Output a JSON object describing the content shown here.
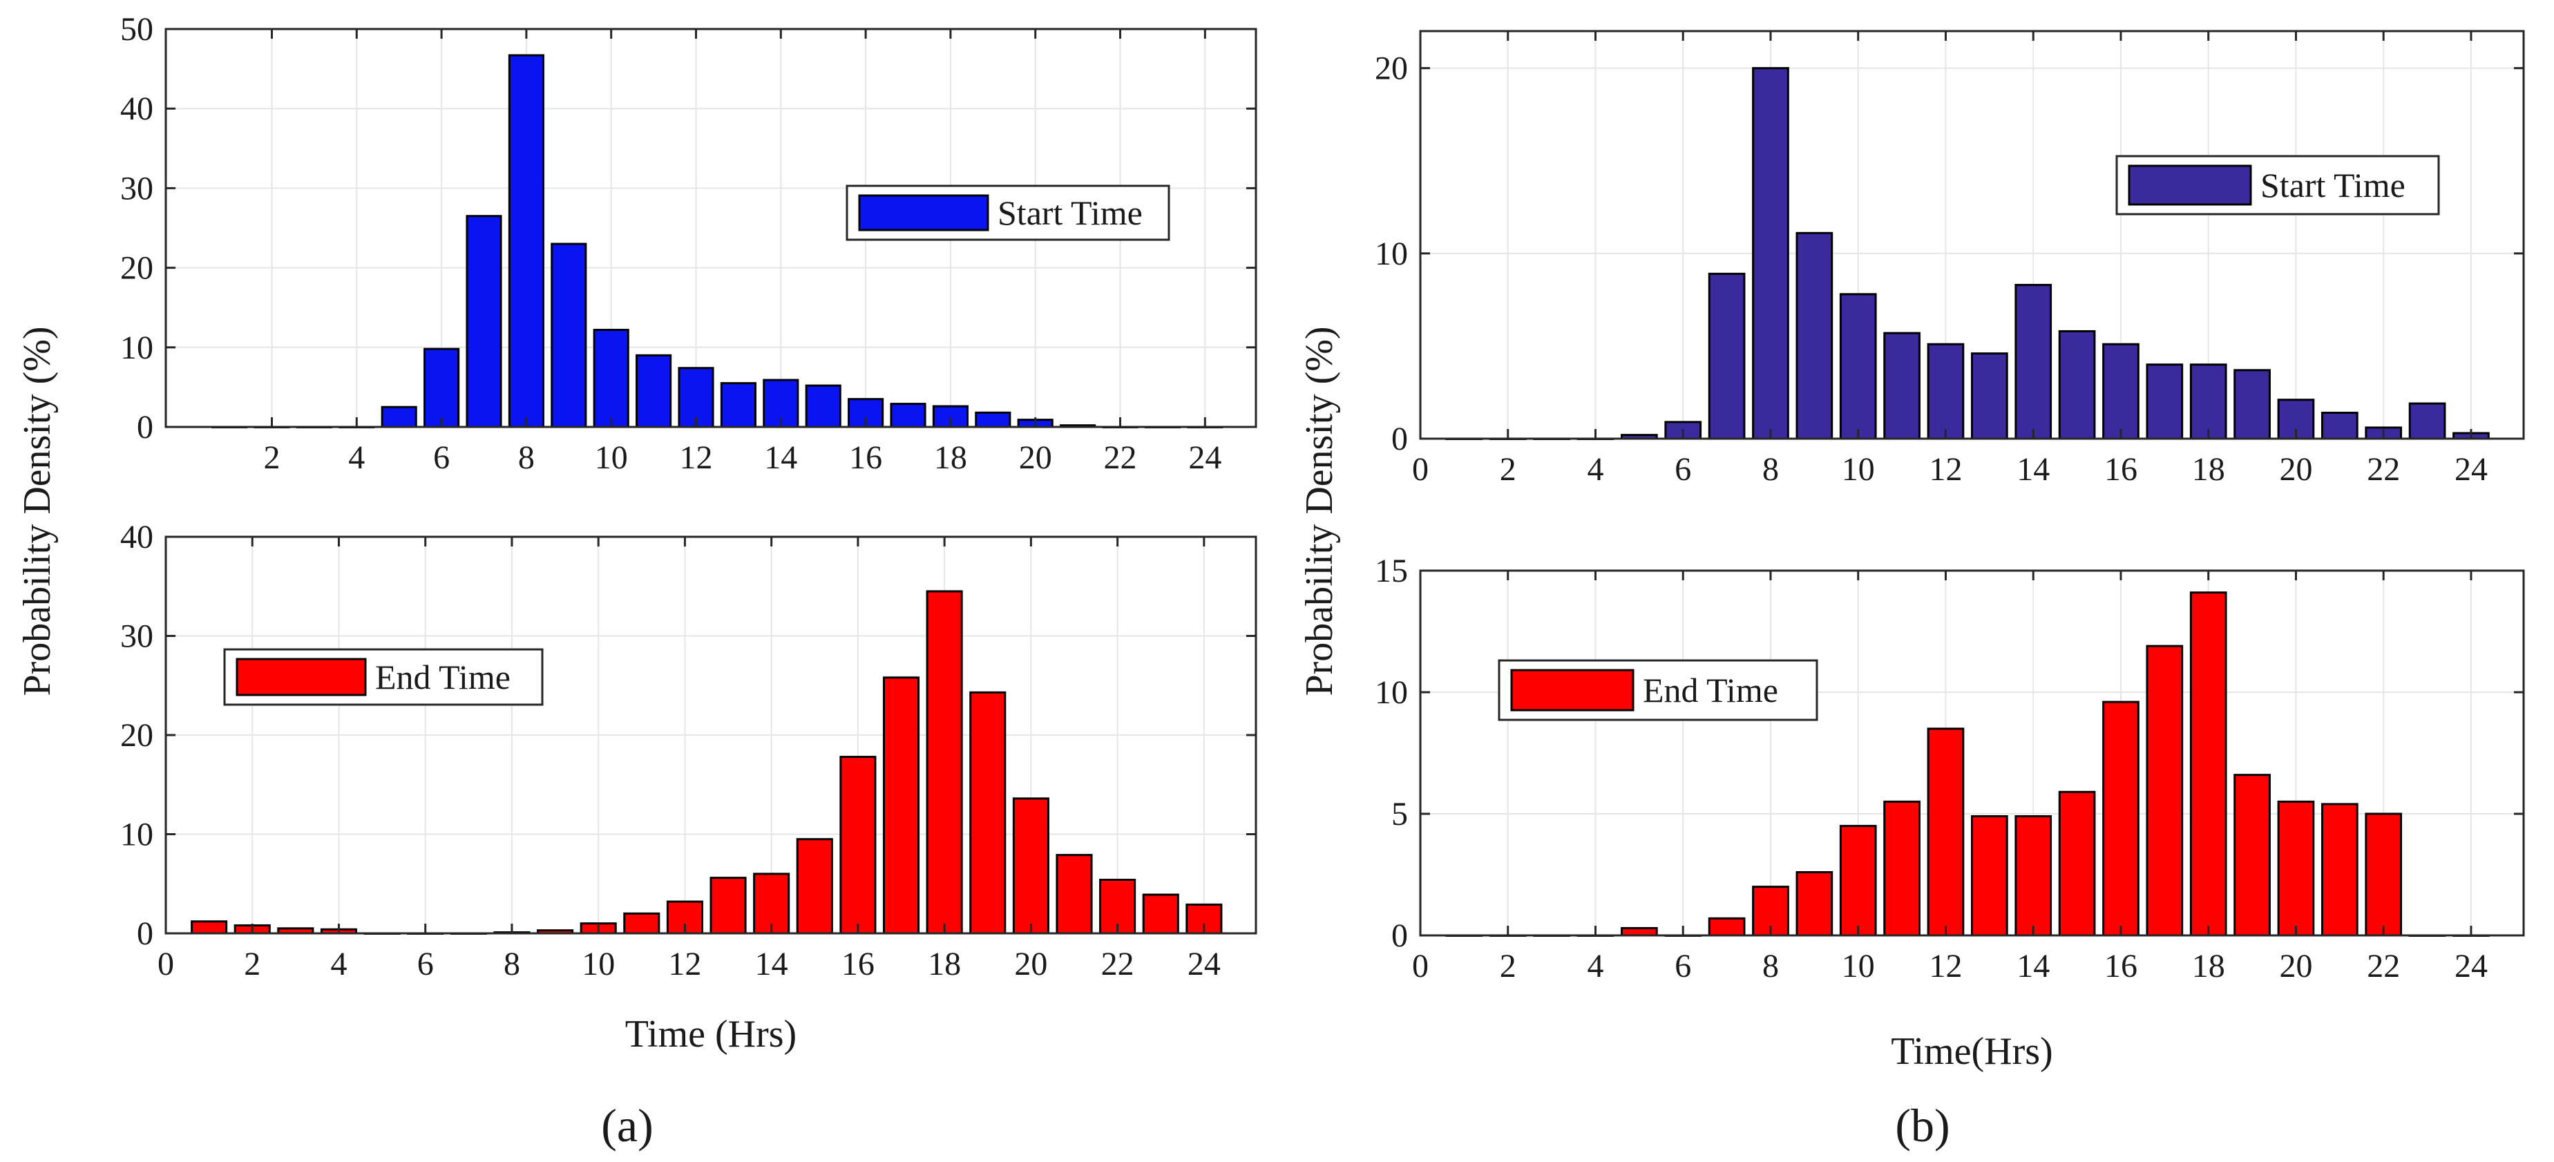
{
  "panel_labels": [
    "(a)",
    "(b)"
  ],
  "shared_ylabels": [
    "Probability Density (%)",
    "Probability Density (%)"
  ],
  "colors": {
    "a_start": "#0a14f0",
    "a_end": "#ff0000",
    "b_start": "#3a2a9e",
    "b_end": "#ff0000"
  },
  "chart_data": [
    {
      "id": "a_top",
      "type": "bar",
      "series": [
        {
          "name": "Start Time",
          "values": [
            0,
            0,
            0,
            0,
            2.5,
            9.8,
            26.5,
            46.7,
            23.0,
            12.2,
            9.0,
            7.4,
            5.5,
            5.9,
            5.2,
            3.5,
            2.9,
            2.6,
            1.8,
            0.9,
            0.2,
            0,
            0,
            0
          ]
        }
      ],
      "x": [
        1,
        2,
        3,
        4,
        5,
        6,
        7,
        8,
        9,
        10,
        11,
        12,
        13,
        14,
        15,
        16,
        17,
        18,
        19,
        20,
        21,
        22,
        23,
        24
      ],
      "xticks": [
        2,
        4,
        6,
        8,
        10,
        12,
        14,
        16,
        18,
        20,
        22,
        24
      ],
      "yticks": [
        0,
        10,
        20,
        30,
        40,
        50
      ],
      "xlim": [
        -0.5,
        25.2
      ],
      "ylim": [
        0,
        50
      ],
      "xlabel": "",
      "grid": true,
      "legend": "right"
    },
    {
      "id": "a_bottom",
      "type": "bar",
      "series": [
        {
          "name": "End Time",
          "values": [
            1.2,
            0.8,
            0.5,
            0.4,
            0,
            0,
            0,
            0.1,
            0.3,
            1.0,
            2.0,
            3.2,
            5.6,
            6.0,
            9.5,
            17.8,
            25.8,
            34.5,
            24.3,
            13.6,
            7.9,
            5.4,
            3.9,
            2.9
          ]
        }
      ],
      "x": [
        1,
        2,
        3,
        4,
        5,
        6,
        7,
        8,
        9,
        10,
        11,
        12,
        13,
        14,
        15,
        16,
        17,
        18,
        19,
        20,
        21,
        22,
        23,
        24
      ],
      "xticks": [
        0,
        2,
        4,
        6,
        8,
        10,
        12,
        14,
        16,
        18,
        20,
        22,
        24
      ],
      "yticks": [
        0,
        10,
        20,
        30,
        40
      ],
      "xlim": [
        0,
        25.2
      ],
      "ylim": [
        0,
        40
      ],
      "xlabel": "Time (Hrs)",
      "grid": true,
      "legend": "left"
    },
    {
      "id": "b_top",
      "type": "bar",
      "series": [
        {
          "name": "Start Time",
          "values": [
            0,
            0,
            0,
            0,
            0.2,
            0.9,
            8.9,
            20.0,
            11.1,
            7.8,
            5.7,
            5.1,
            4.6,
            8.3,
            5.8,
            5.1,
            4.0,
            4.0,
            3.7,
            2.1,
            1.4,
            0.6,
            1.9,
            0.3
          ]
        }
      ],
      "x": [
        1,
        2,
        3,
        4,
        5,
        6,
        7,
        8,
        9,
        10,
        11,
        12,
        13,
        14,
        15,
        16,
        17,
        18,
        19,
        20,
        21,
        22,
        23,
        24
      ],
      "xticks": [
        0,
        2,
        4,
        6,
        8,
        10,
        12,
        14,
        16,
        18,
        20,
        22,
        24
      ],
      "yticks": [
        0,
        10,
        20
      ],
      "xlim": [
        0,
        25.2
      ],
      "ylim": [
        0,
        22
      ],
      "xlabel": "",
      "grid": true,
      "legend": "right"
    },
    {
      "id": "b_bottom",
      "type": "bar",
      "series": [
        {
          "name": "End Time",
          "values": [
            0,
            0,
            0,
            0,
            0.3,
            0,
            0.7,
            2.0,
            2.6,
            4.5,
            5.5,
            8.5,
            4.9,
            4.9,
            5.9,
            9.6,
            11.9,
            14.1,
            6.6,
            5.5,
            5.4,
            5.0,
            0,
            0
          ]
        }
      ],
      "x": [
        1,
        2,
        3,
        4,
        5,
        6,
        7,
        8,
        9,
        10,
        11,
        12,
        13,
        14,
        15,
        16,
        17,
        18,
        19,
        20,
        21,
        22,
        23,
        24
      ],
      "xticks": [
        0,
        2,
        4,
        6,
        8,
        10,
        12,
        14,
        16,
        18,
        20,
        22,
        24
      ],
      "yticks": [
        0,
        5,
        10,
        15
      ],
      "xlim": [
        0,
        25.2
      ],
      "ylim": [
        0,
        15
      ],
      "xlabel": "Time(Hrs)",
      "grid": true,
      "legend": "left"
    }
  ]
}
